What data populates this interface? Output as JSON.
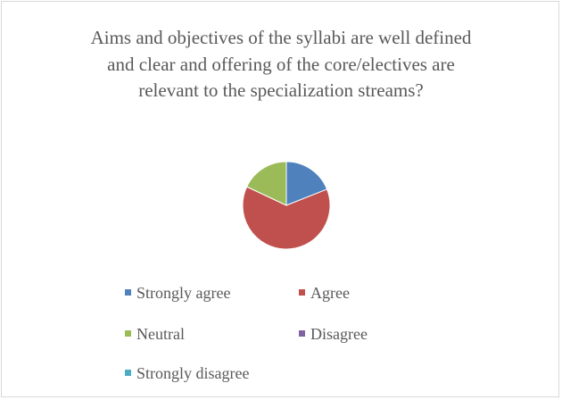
{
  "chart_data": {
    "type": "pie",
    "title": "Aims and objectives of the syllabi are well defined and clear and offering of the core/electives are relevant to the specialization streams?",
    "categories": [
      "Strongly agree",
      "Agree",
      "Neutral",
      "Disagree",
      "Strongly disagree"
    ],
    "values": [
      19,
      63,
      18,
      0,
      0
    ],
    "colors": [
      "#4f81bd",
      "#c0504d",
      "#9bbb59",
      "#8064a2",
      "#4bacc6"
    ],
    "legend": "bottom"
  }
}
